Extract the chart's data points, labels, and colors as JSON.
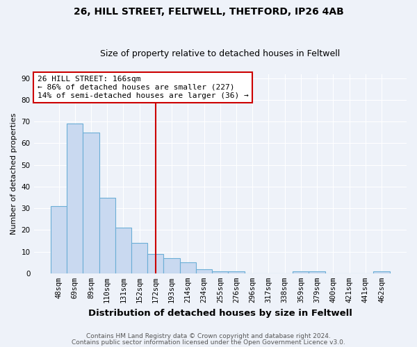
{
  "title1": "26, HILL STREET, FELTWELL, THETFORD, IP26 4AB",
  "title2": "Size of property relative to detached houses in Feltwell",
  "xlabel": "Distribution of detached houses by size in Feltwell",
  "ylabel": "Number of detached properties",
  "categories": [
    "48sqm",
    "69sqm",
    "89sqm",
    "110sqm",
    "131sqm",
    "152sqm",
    "172sqm",
    "193sqm",
    "214sqm",
    "234sqm",
    "255sqm",
    "276sqm",
    "296sqm",
    "317sqm",
    "338sqm",
    "359sqm",
    "379sqm",
    "400sqm",
    "421sqm",
    "441sqm",
    "462sqm"
  ],
  "values": [
    31,
    69,
    65,
    35,
    21,
    14,
    9,
    7,
    5,
    2,
    1,
    1,
    0,
    0,
    0,
    1,
    1,
    0,
    0,
    0,
    1
  ],
  "bar_color": "#c9d9f0",
  "bar_edge_color": "#6baed6",
  "vline_x_index": 6,
  "vline_color": "#cc0000",
  "annotation_line1": "26 HILL STREET: 166sqm",
  "annotation_line2": "← 86% of detached houses are smaller (227)",
  "annotation_line3": "14% of semi-detached houses are larger (36) →",
  "annotation_box_color": "#ffffff",
  "annotation_box_edge_color": "#cc0000",
  "ylim": [
    0,
    92
  ],
  "yticks": [
    0,
    10,
    20,
    30,
    40,
    50,
    60,
    70,
    80,
    90
  ],
  "footer1": "Contains HM Land Registry data © Crown copyright and database right 2024.",
  "footer2": "Contains public sector information licensed under the Open Government Licence v3.0.",
  "bg_color": "#eef2f9",
  "grid_color": "#ffffff",
  "title1_fontsize": 10,
  "title2_fontsize": 9,
  "xlabel_fontsize": 9.5,
  "ylabel_fontsize": 8,
  "tick_fontsize": 7.5,
  "annot_fontsize": 8,
  "footer_fontsize": 6.5
}
